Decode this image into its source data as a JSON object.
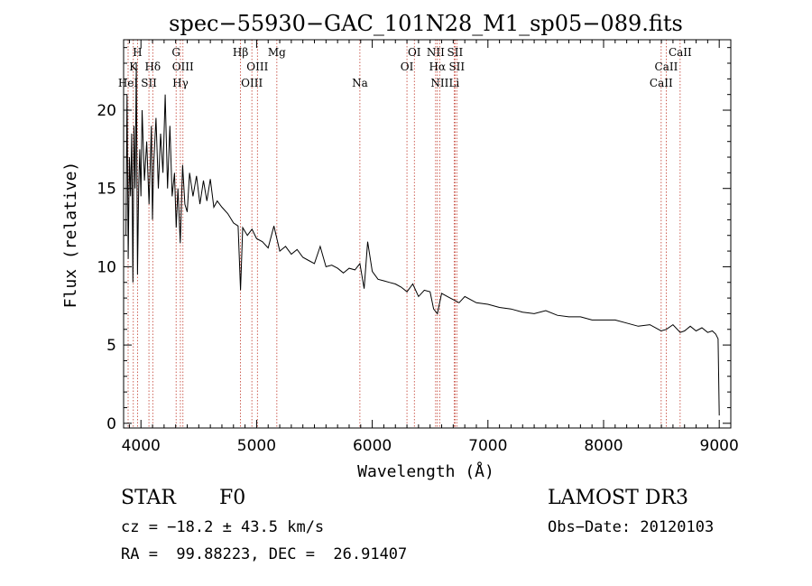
{
  "chart_data": {
    "type": "line",
    "title": "spec−55930−GAC_101N28_M1_sp05−089.fits",
    "xlabel": "Wavelength (Å)",
    "ylabel": "Flux (relative)",
    "xlim": [
      3850,
      9100
    ],
    "ylim": [
      -0.3,
      24.5
    ],
    "xticks": [
      4000,
      5000,
      6000,
      7000,
      8000,
      9000
    ],
    "xtick_labels": [
      "4000",
      "5000",
      "6000",
      "7000",
      "8000",
      "9000"
    ],
    "yticks": [
      0,
      5,
      10,
      15,
      20
    ],
    "ytick_labels": [
      "0",
      "5",
      "10",
      "15",
      "20"
    ],
    "series": [
      {
        "name": "spectrum",
        "color": "#000000",
        "x": [
          3870,
          3880,
          3890,
          3900,
          3910,
          3920,
          3930,
          3940,
          3950,
          3960,
          3970,
          3980,
          3990,
          4000,
          4010,
          4030,
          4050,
          4070,
          4090,
          4100,
          4110,
          4130,
          4150,
          4170,
          4190,
          4210,
          4230,
          4250,
          4270,
          4290,
          4305,
          4320,
          4340,
          4360,
          4380,
          4400,
          4420,
          4450,
          4480,
          4510,
          4540,
          4570,
          4600,
          4630,
          4660,
          4700,
          4750,
          4800,
          4840,
          4861,
          4880,
          4920,
          4960,
          5000,
          5050,
          5100,
          5150,
          5200,
          5250,
          5300,
          5350,
          5400,
          5450,
          5500,
          5550,
          5600,
          5650,
          5700,
          5750,
          5800,
          5850,
          5893,
          5930,
          5960,
          6000,
          6050,
          6100,
          6150,
          6200,
          6250,
          6300,
          6350,
          6400,
          6450,
          6500,
          6530,
          6563,
          6600,
          6650,
          6700,
          6750,
          6800,
          6900,
          7000,
          7100,
          7200,
          7300,
          7400,
          7500,
          7600,
          7700,
          7800,
          7900,
          8000,
          8100,
          8200,
          8300,
          8400,
          8498,
          8542,
          8600,
          8662,
          8700,
          8750,
          8800,
          8850,
          8900,
          8940,
          8970,
          8990,
          9000
        ],
        "y": [
          12.0,
          21.0,
          10.5,
          17.0,
          14.5,
          18.5,
          9.0,
          19.0,
          15.0,
          23.0,
          9.5,
          15.0,
          17.5,
          14.5,
          20.0,
          15.5,
          18.0,
          14.0,
          19.0,
          13.0,
          16.5,
          19.5,
          15.0,
          18.5,
          16.0,
          21.0,
          15.0,
          19.0,
          14.5,
          16.0,
          12.5,
          15.0,
          11.5,
          16.5,
          14.0,
          13.5,
          16.0,
          14.5,
          15.8,
          14.0,
          15.5,
          14.2,
          15.6,
          13.8,
          14.2,
          13.8,
          13.4,
          12.8,
          12.6,
          8.5,
          12.5,
          12.0,
          12.4,
          11.8,
          11.6,
          11.2,
          12.6,
          11.0,
          11.3,
          10.8,
          11.1,
          10.6,
          10.4,
          10.2,
          11.3,
          10.0,
          10.1,
          9.9,
          9.6,
          9.9,
          9.8,
          10.2,
          8.6,
          11.6,
          9.7,
          9.2,
          9.1,
          9.0,
          8.9,
          8.7,
          8.4,
          8.9,
          8.1,
          8.5,
          8.4,
          7.3,
          7.0,
          8.3,
          8.1,
          7.9,
          7.7,
          8.1,
          7.7,
          7.6,
          7.4,
          7.3,
          7.1,
          7.0,
          7.2,
          6.9,
          6.8,
          6.8,
          6.6,
          6.6,
          6.6,
          6.4,
          6.2,
          6.3,
          5.9,
          6.0,
          6.3,
          5.8,
          5.9,
          6.2,
          5.9,
          6.1,
          5.8,
          5.9,
          5.7,
          5.4,
          0.5
        ]
      }
    ],
    "lines": [
      {
        "name": "HeI",
        "x": 3889,
        "row": 3
      },
      {
        "name": "H",
        "x": 3970,
        "row": 1
      },
      {
        "name": "K",
        "x": 3934,
        "row": 2
      },
      {
        "name": "SII",
        "x": 4069,
        "row": 3
      },
      {
        "name": "Hδ",
        "x": 4102,
        "row": 2
      },
      {
        "name": "G",
        "x": 4304,
        "row": 1
      },
      {
        "name": "OIII",
        "x": 4363,
        "row": 2
      },
      {
        "name": "Hγ",
        "x": 4341,
        "row": 3
      },
      {
        "name": "Hβ",
        "x": 4861,
        "row": 1
      },
      {
        "name": "OIII",
        "x": 5007,
        "row": 2
      },
      {
        "name": "OIII",
        "x": 4959,
        "row": 3
      },
      {
        "name": "Mg",
        "x": 5175,
        "row": 1
      },
      {
        "name": "Na",
        "x": 5893,
        "row": 3
      },
      {
        "name": "OI",
        "x": 6364,
        "row": 1
      },
      {
        "name": "OI",
        "x": 6300,
        "row": 2
      },
      {
        "name": "NII",
        "x": 6548,
        "row": 1
      },
      {
        "name": "NII",
        "x": 6583,
        "row": 3
      },
      {
        "name": "Hα",
        "x": 6563,
        "row": 2
      },
      {
        "name": "SII",
        "x": 6716,
        "row": 1
      },
      {
        "name": "SII",
        "x": 6731,
        "row": 2
      },
      {
        "name": "Li",
        "x": 6708,
        "row": 3
      },
      {
        "name": "CaII",
        "x": 8662,
        "row": 1
      },
      {
        "name": "CaII",
        "x": 8542,
        "row": 2
      },
      {
        "name": "CaII",
        "x": 8498,
        "row": 3
      }
    ]
  },
  "info": {
    "class": "STAR",
    "subclass": "F0",
    "survey": "LAMOST DR3",
    "cz": "cz = −18.2 ± 43.5 km/s",
    "obs_date": "Obs−Date: 20120103",
    "coords": "RA =  99.88223, DEC =  26.91407"
  },
  "colors": {
    "axis": "#000000",
    "spectrum": "#000000",
    "marker_line": "#c0392b"
  }
}
